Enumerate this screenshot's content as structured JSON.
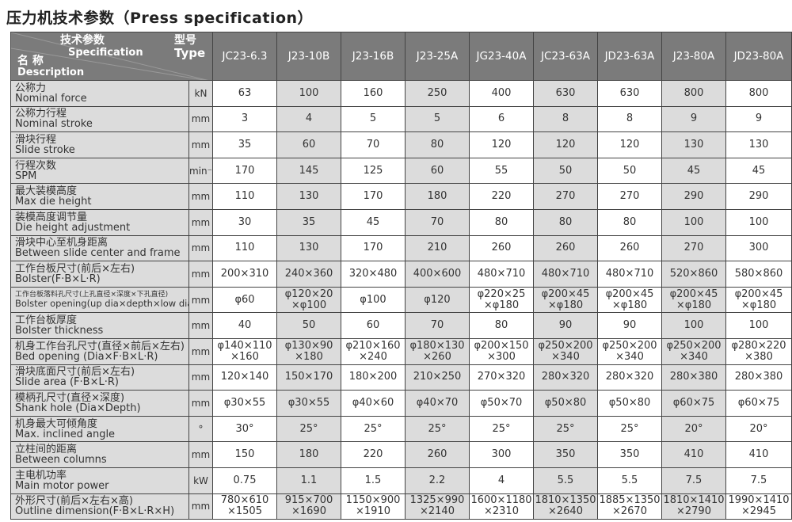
{
  "title": "压力机技术参数（Press specification）",
  "header": {
    "spec_zh": "技术参数",
    "spec_en": "Specification",
    "type_zh": "型号",
    "type_en": "Type",
    "desc_zh": "名 称",
    "desc_en": "Description",
    "models": [
      "JC23-6.3",
      "J23-10B",
      "J23-16B",
      "J23-25A",
      "JG23-40A",
      "JC23-63A",
      "JD23-63A",
      "J23-80A",
      "JD23-80A"
    ]
  },
  "colors": {
    "header_bg": "#7b7b7b",
    "shaded_cell": "#dcdcdc",
    "border": "#444444"
  },
  "rows": [
    {
      "zh": "公称力",
      "en": "Nominal force",
      "unit": "kN",
      "values": [
        "63",
        "100",
        "160",
        "250",
        "400",
        "630",
        "630",
        "800",
        "800"
      ]
    },
    {
      "zh": "公称力行程",
      "en": "Nominal stroke",
      "unit": "mm",
      "values": [
        "3",
        "4",
        "5",
        "5",
        "6",
        "8",
        "8",
        "9",
        "9"
      ]
    },
    {
      "zh": "滑块行程",
      "en": "Slide stroke",
      "unit": "mm",
      "values": [
        "35",
        "60",
        "70",
        "80",
        "120",
        "120",
        "120",
        "130",
        "130"
      ]
    },
    {
      "zh": "行程次数",
      "en": "SPM",
      "unit": "min⁻¹",
      "values": [
        "170",
        "145",
        "125",
        "60",
        "55",
        "50",
        "50",
        "45",
        "45"
      ]
    },
    {
      "zh": "最大装模高度",
      "en": "Max die height",
      "unit": "mm",
      "values": [
        "110",
        "130",
        "170",
        "180",
        "220",
        "270",
        "270",
        "290",
        "290"
      ]
    },
    {
      "zh": "装模高度调节量",
      "en": "Die height adjustment",
      "unit": "mm",
      "values": [
        "30",
        "35",
        "45",
        "70",
        "80",
        "80",
        "80",
        "100",
        "100"
      ]
    },
    {
      "zh": "滑块中心至机身距离",
      "en": "Between slide center and frame",
      "unit": "mm",
      "values": [
        "110",
        "130",
        "170",
        "210",
        "260",
        "260",
        "260",
        "270",
        "300"
      ]
    },
    {
      "zh": "工作台板尺寸(前后×左右)",
      "en": "Bolster(F·B×L·R)",
      "unit": "mm",
      "values": [
        "200×310",
        "240×360",
        "320×480",
        "400×600",
        "480×710",
        "480×710",
        "480×710",
        "520×860",
        "580×860"
      ]
    },
    {
      "zh": "工作台板落料孔尺寸(上孔直径×深度×下孔直径)",
      "en": "Bolster opening(up dia×depth×low dia)",
      "unit": "mm",
      "small": true,
      "values": [
        "φ60",
        "φ120×20\n×φ100",
        "φ100",
        "φ120",
        "φ220×25\n×φ180",
        "φ200×45\n×φ180",
        "φ200×45\n×φ180",
        "φ200×45\n×φ180",
        "φ200×45\n×φ180"
      ]
    },
    {
      "zh": "工作台板厚度",
      "en": "Bolster thickness",
      "unit": "mm",
      "values": [
        "40",
        "50",
        "60",
        "70",
        "80",
        "90",
        "90",
        "100",
        "100"
      ]
    },
    {
      "zh": "机身工作台孔尺寸(直径×前后×左右)",
      "en": "Bed opening (Dia×F·B×L·R)",
      "unit": "mm",
      "values": [
        "φ140×110\n×160",
        "φ130×90\n×180",
        "φ210×160\n×240",
        "φ180×130\n×260",
        "φ200×150\n×300",
        "φ250×200\n×340",
        "φ250×200\n×340",
        "φ250×200\n×340",
        "φ280×220\n×380"
      ]
    },
    {
      "zh": "滑块底面尺寸(前后×左右)",
      "en": "Slide area (F·B×L·R)",
      "unit": "mm",
      "values": [
        "120×140",
        "150×170",
        "180×200",
        "210×250",
        "270×320",
        "280×320",
        "280×320",
        "280×380",
        "280×380"
      ]
    },
    {
      "zh": "模柄孔尺寸(直径×深度)",
      "en": "Shank hole (Dia×Depth)",
      "unit": "mm",
      "values": [
        "φ30×55",
        "φ30×55",
        "φ40×60",
        "φ40×70",
        "φ50×70",
        "φ50×80",
        "φ50×80",
        "φ60×75",
        "φ60×75"
      ]
    },
    {
      "zh": "机身最大可倾角度",
      "en": "Max. inclined angle",
      "unit": "°",
      "values": [
        "30°",
        "25°",
        "25°",
        "25°",
        "25°",
        "25°",
        "25°",
        "20°",
        "20°"
      ]
    },
    {
      "zh": "立柱间的距离",
      "en": "Between columns",
      "unit": "mm",
      "values": [
        "150",
        "180",
        "220",
        "260",
        "300",
        "350",
        "350",
        "410",
        "410"
      ]
    },
    {
      "zh": "主电机功率",
      "en": "Main motor power",
      "unit": "kW",
      "values": [
        "0.75",
        "1.1",
        "1.5",
        "2.2",
        "4",
        "5.5",
        "5.5",
        "7.5",
        "7.5"
      ]
    },
    {
      "zh": "外形尺寸(前后×左右×高)",
      "en": "Outline dimension(F·B×L·R×H)",
      "unit": "mm",
      "values": [
        "780×610\n×1505",
        "915×700\n×1690",
        "1150×900\n×1910",
        "1325×990\n×2140",
        "1600×1180\n×2310",
        "1810×1350\n×2640",
        "1885×1350\n×2670",
        "1810×1410\n×2790",
        "1990×1410\n×2945"
      ]
    }
  ]
}
